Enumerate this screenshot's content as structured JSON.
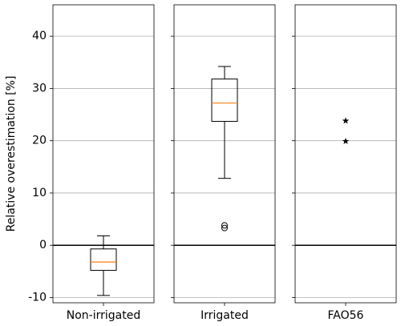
{
  "chart_data": [
    {
      "type": "box",
      "ylabel": "Relative overestimation [%]",
      "category": "Non-irrigated",
      "stats": {
        "whislo": -9.6,
        "q1": -4.8,
        "med": -3.2,
        "q3": -0.7,
        "whishi": 1.8
      },
      "outliers": [],
      "ylim": [
        -11,
        46
      ],
      "yticks": [
        -10,
        0,
        10,
        20,
        30,
        40
      ],
      "grid": true,
      "hline": 0,
      "median_color": "#ff7f0e"
    },
    {
      "type": "box",
      "category": "Irrigated",
      "stats": {
        "whislo": 12.8,
        "q1": 23.7,
        "med": 27.2,
        "q3": 31.8,
        "whishi": 34.2
      },
      "outliers": [
        3.8,
        3.3
      ],
      "ylim": [
        -11,
        46
      ],
      "yticks": [
        -10,
        0,
        10,
        20,
        30,
        40
      ],
      "grid": true,
      "hline": 0,
      "median_color": "#ff7f0e"
    },
    {
      "type": "scatter",
      "category": "FAO56",
      "values": [
        23.8,
        19.9
      ],
      "marker": "star",
      "ylim": [
        -11,
        46
      ],
      "yticks": [
        -10,
        0,
        10,
        20,
        30,
        40
      ],
      "grid": true,
      "hline": 0
    }
  ]
}
